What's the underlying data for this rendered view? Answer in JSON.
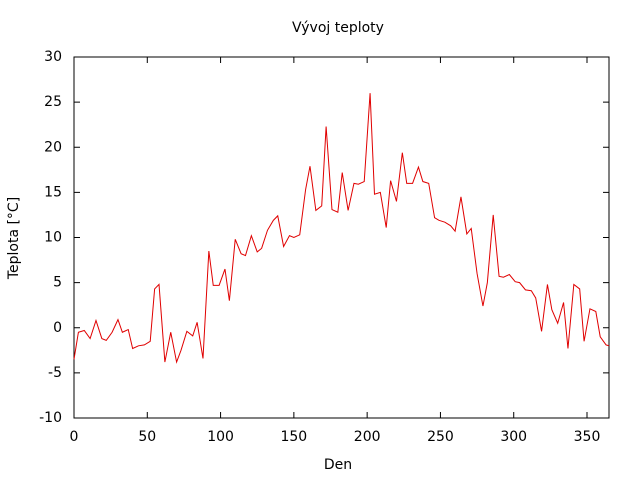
{
  "chart_data": {
    "type": "line",
    "title": "Vývoj teploty",
    "x_label": "Den",
    "y_label": "Teplota [°C]",
    "x": [
      0,
      3,
      7,
      11,
      15,
      19,
      22,
      26,
      30,
      33,
      37,
      40,
      44,
      48,
      52,
      55,
      58,
      62,
      66,
      70,
      73,
      77,
      81,
      84,
      88,
      92,
      95,
      99,
      103,
      106,
      110,
      114,
      117,
      121,
      125,
      128,
      132,
      136,
      139,
      143,
      147,
      150,
      154,
      158,
      161,
      165,
      169,
      172,
      176,
      180,
      183,
      187,
      191,
      194,
      198,
      202,
      205,
      209,
      213,
      216,
      220,
      224,
      227,
      231,
      235,
      238,
      242,
      246,
      249,
      253,
      257,
      260,
      264,
      268,
      271,
      275,
      279,
      282,
      286,
      290,
      293,
      297,
      301,
      304,
      308,
      312,
      315,
      319,
      323,
      326,
      330,
      334,
      337,
      341,
      345,
      348,
      352,
      356,
      359,
      363,
      365
    ],
    "series": [
      {
        "color": "#e00000",
        "values": [
          -3.5,
          -0.5,
          -0.3,
          -1.2,
          0.8,
          -1.2,
          -1.4,
          -0.5,
          0.9,
          -0.5,
          -0.2,
          -2.3,
          -2.0,
          -1.9,
          -1.5,
          4.3,
          4.8,
          -3.8,
          -0.5,
          -3.8,
          -2.5,
          -0.4,
          -0.9,
          0.6,
          -3.4,
          8.5,
          4.7,
          4.7,
          6.5,
          3.0,
          9.8,
          8.2,
          8.0,
          10.2,
          8.4,
          8.8,
          10.8,
          11.9,
          12.4,
          9.0,
          10.2,
          10.0,
          10.3,
          15.3,
          17.9,
          13.0,
          13.5,
          22.3,
          13.1,
          12.8,
          17.2,
          13.0,
          16.0,
          15.9,
          16.2,
          26.0,
          14.8,
          15.0,
          11.1,
          16.3,
          14.0,
          19.4,
          16.0,
          16.0,
          17.8,
          16.2,
          16.0,
          12.2,
          11.9,
          11.7,
          11.3,
          10.7,
          14.5,
          10.4,
          11.0,
          6.0,
          2.4,
          5.0,
          12.5,
          5.7,
          5.6,
          5.9,
          5.1,
          5.0,
          4.2,
          4.1,
          3.3,
          -0.4,
          4.8,
          2.0,
          0.5,
          2.8,
          -2.3,
          4.8,
          4.3,
          -1.5,
          2.1,
          1.8,
          -1.0,
          -1.9,
          -2.0
        ]
      }
    ],
    "xlim": [
      0,
      365
    ],
    "xticks": [
      0,
      50,
      100,
      150,
      200,
      250,
      300,
      350
    ],
    "ylim": [
      -10,
      30
    ],
    "yticks": [
      -10,
      -5,
      0,
      5,
      10,
      15,
      20,
      25,
      30
    ]
  }
}
